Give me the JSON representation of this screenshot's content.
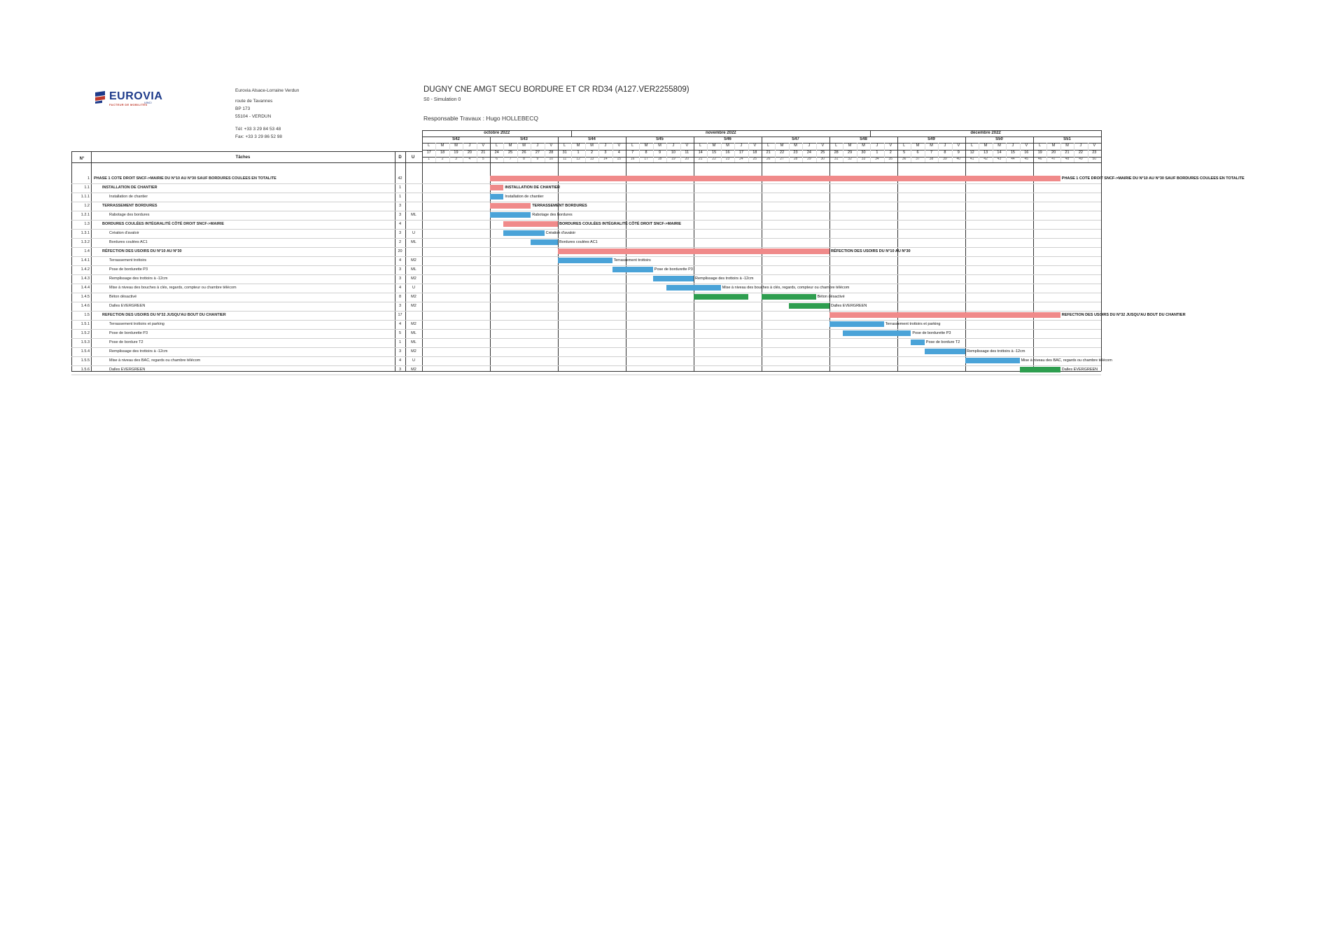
{
  "company": {
    "logo_text": "EUROVIA",
    "logo_tagline": "FACTEUR DE MOBILITÉS",
    "group": "VINCI",
    "name": "Eurovia Alsace-Lorraine Verdun",
    "street": "route de Tavannes",
    "bp": "BP 173",
    "city": "55104 - VERDUN",
    "tel": "Tél: +33 3 29 84 53 48",
    "fax": "Fax: +33 3 29 86 52 98"
  },
  "project": {
    "title": "DUGNY CNE AMGT SECU BORDURE ET CR RD34 (A127.VER2255809)",
    "simulation": "S0 - Simulation 0",
    "manager": "Responsable Travaux : Hugo HOLLEBECQ"
  },
  "table_headers": {
    "num": "N°",
    "task": "Tâches",
    "d": "D",
    "u": "U"
  },
  "months": [
    {
      "label": "octobre 2022",
      "start": 0,
      "span": 11
    },
    {
      "label": "novembre 2022",
      "start": 11,
      "span": 22
    },
    {
      "label": "décembre 2022",
      "start": 33,
      "span": 17
    }
  ],
  "weeks": [
    {
      "label": "S42",
      "start": 0,
      "span": 5
    },
    {
      "label": "S43",
      "start": 5,
      "span": 5
    },
    {
      "label": "S44",
      "start": 10,
      "span": 5
    },
    {
      "label": "S45",
      "start": 15,
      "span": 5
    },
    {
      "label": "S46",
      "start": 20,
      "span": 5
    },
    {
      "label": "S47",
      "start": 25,
      "span": 5
    },
    {
      "label": "S48",
      "start": 30,
      "span": 5
    },
    {
      "label": "S49",
      "start": 35,
      "span": 5
    },
    {
      "label": "S50",
      "start": 40,
      "span": 5
    },
    {
      "label": "S51",
      "start": 45,
      "span": 5
    }
  ],
  "day_letters": [
    "L",
    "M",
    "M",
    "J",
    "V",
    "L",
    "M",
    "M",
    "J",
    "V",
    "L",
    "M",
    "M",
    "J",
    "V",
    "L",
    "M",
    "M",
    "J",
    "V",
    "L",
    "M",
    "M",
    "J",
    "V",
    "L",
    "M",
    "M",
    "J",
    "V",
    "L",
    "M",
    "M",
    "J",
    "V",
    "L",
    "M",
    "M",
    "J",
    "V",
    "L",
    "M",
    "M",
    "J",
    "V",
    "L",
    "M",
    "M",
    "J",
    "V"
  ],
  "day_numbers": [
    "17",
    "18",
    "19",
    "20",
    "21",
    "24",
    "25",
    "26",
    "27",
    "28",
    "31",
    "1",
    "2",
    "3",
    "4",
    "7",
    "8",
    "9",
    "10",
    "11",
    "14",
    "15",
    "16",
    "17",
    "18",
    "21",
    "22",
    "23",
    "24",
    "25",
    "28",
    "29",
    "30",
    "1",
    "2",
    "5",
    "6",
    "7",
    "8",
    "9",
    "12",
    "13",
    "14",
    "15",
    "16",
    "19",
    "20",
    "21",
    "22",
    "23"
  ],
  "day_index": [
    "1",
    "2",
    "3",
    "4",
    "5",
    "6",
    "7",
    "8",
    "9",
    "10",
    "11",
    "12",
    "13",
    "14",
    "15",
    "16",
    "17",
    "18",
    "19",
    "20",
    "21",
    "22",
    "23",
    "24",
    "25",
    "26",
    "27",
    "28",
    "29",
    "30",
    "31",
    "32",
    "33",
    "34",
    "35",
    "36",
    "37",
    "38",
    "39",
    "40",
    "41",
    "42",
    "43",
    "44",
    "45",
    "46",
    "47",
    "48",
    "49",
    "50"
  ],
  "tasks": [
    {
      "num": "1",
      "name": "PHASE 1 COTE DROIT SNCF->MAIRIE DU N°10 AU N°30 SAUF BORDURES COULEES EN TOTALITE",
      "d": "42",
      "u": "",
      "bold": true,
      "indent": 0,
      "bar_start": 5,
      "bar_len": 42,
      "color": "#f08a8a",
      "bar_label": "PHASE 1 COTE DROIT SNCF->MAIRIE DU N°10 AU N°30 SAUF BORDURES COULEES EN TOTALITE"
    },
    {
      "num": "1.1",
      "name": "INSTALLATION DE CHANTIER",
      "d": "1",
      "u": "",
      "bold": true,
      "indent": 1,
      "bar_start": 5,
      "bar_len": 1,
      "color": "#f08a8a",
      "bar_label": "INSTALLATION DE CHANTIER"
    },
    {
      "num": "1.1.1",
      "name": "Installation de chantier",
      "d": "1",
      "u": "",
      "bold": false,
      "indent": 2,
      "bar_start": 5,
      "bar_len": 1,
      "color": "#4aa3d8",
      "bar_label": "Installation de chantier"
    },
    {
      "num": "1.2",
      "name": "TERRASSEMENT BORDURES",
      "d": "3",
      "u": "",
      "bold": true,
      "indent": 1,
      "bar_start": 5,
      "bar_len": 3,
      "color": "#f08a8a",
      "bar_label": "TERRASSEMENT BORDURES"
    },
    {
      "num": "1.2.1",
      "name": "Rabotage des bordures",
      "d": "3",
      "u": "ML",
      "bold": false,
      "indent": 2,
      "bar_start": 5,
      "bar_len": 3,
      "color": "#4aa3d8",
      "bar_label": "Rabotage des bordures"
    },
    {
      "num": "1.3",
      "name": "BORDURES COULÉES INTÉGRALITÉ CÔTÉ DROIT SNCF->MAIRIE",
      "d": "4",
      "u": "",
      "bold": true,
      "indent": 1,
      "bar_start": 6,
      "bar_len": 4,
      "color": "#f08a8a",
      "bar_label": "BORDURES COULÉES INTÉGRALITÉ CÔTÉ DROIT SNCF->MAIRIE"
    },
    {
      "num": "1.3.1",
      "name": "Création d'avaloir",
      "d": "3",
      "u": "U",
      "bold": false,
      "indent": 2,
      "bar_start": 6,
      "bar_len": 3,
      "color": "#4aa3d8",
      "bar_label": "Création d'avaloir"
    },
    {
      "num": "1.3.2",
      "name": "Bordures coulées AC1",
      "d": "2",
      "u": "ML",
      "bold": false,
      "indent": 2,
      "bar_start": 8,
      "bar_len": 2,
      "color": "#4aa3d8",
      "bar_label": "Bordures coulées AC1"
    },
    {
      "num": "1.4",
      "name": "RÉFECTION DES USOIRS DU N°10 AU N°30",
      "d": "20",
      "u": "",
      "bold": true,
      "indent": 1,
      "bar_start": 10,
      "bar_len": 20,
      "color": "#f08a8a",
      "bar_label": "RÉFECTION DES USOIRS DU N°10 AU N°30"
    },
    {
      "num": "1.4.1",
      "name": "Terrassement trottoirs",
      "d": "4",
      "u": "M2",
      "bold": false,
      "indent": 2,
      "bar_start": 10,
      "bar_len": 4,
      "color": "#4aa3d8",
      "bar_label": "Terrassement trottoirs"
    },
    {
      "num": "1.4.2",
      "name": "Pose de bordurette P3",
      "d": "3",
      "u": "ML",
      "bold": false,
      "indent": 2,
      "bar_start": 14,
      "bar_len": 3,
      "color": "#4aa3d8",
      "bar_label": "Pose de bordurette P3"
    },
    {
      "num": "1.4.3",
      "name": "Remplissage des trottoirs à -12cm",
      "d": "3",
      "u": "M2",
      "bold": false,
      "indent": 2,
      "bar_start": 17,
      "bar_len": 3,
      "color": "#4aa3d8",
      "bar_label": "Remplissage des trottoirs à -12cm"
    },
    {
      "num": "1.4.4",
      "name": "Mise à niveau des bouches à clés, regards, compteur ou chambre télécom",
      "d": "4",
      "u": "U",
      "bold": false,
      "indent": 2,
      "bar_start": 18,
      "bar_len": 4,
      "color": "#4aa3d8",
      "bar_label": "Mise à niveau des bouches à clés, regards, compteur ou chambre télécom"
    },
    {
      "num": "1.4.5",
      "name": "Béton désactivé",
      "d": "8",
      "u": "M2",
      "bold": false,
      "indent": 2,
      "bar_start": 20,
      "bar_len": 4,
      "bar2_start": 25,
      "bar2_len": 4,
      "color": "#2e9e4f",
      "bar_label": "Béton désactivé"
    },
    {
      "num": "1.4.6",
      "name": "Dalles EVERGREEN",
      "d": "3",
      "u": "M2",
      "bold": false,
      "indent": 2,
      "bar_start": 27,
      "bar_len": 3,
      "color": "#2e9e4f",
      "bar_label": "Dalles EVERGREEN"
    },
    {
      "num": "1.5",
      "name": "REFECTION DES USOIRS DU N°32 JUSQU'AU BOUT DU CHANTIER",
      "d": "17",
      "u": "",
      "bold": true,
      "indent": 1,
      "bar_start": 30,
      "bar_len": 17,
      "color": "#f08a8a",
      "bar_label": "REFECTION DES USOIRS DU N°32 JUSQU'AU BOUT DU CHANTIER"
    },
    {
      "num": "1.5.1",
      "name": "Terrassement trottoirs et parking",
      "d": "4",
      "u": "M2",
      "bold": false,
      "indent": 2,
      "bar_start": 30,
      "bar_len": 4,
      "color": "#4aa3d8",
      "bar_label": "Terrassement trottoirs et parking"
    },
    {
      "num": "1.5.2",
      "name": "Pose de bordurette P3",
      "d": "5",
      "u": "ML",
      "bold": false,
      "indent": 2,
      "bar_start": 31,
      "bar_len": 5,
      "color": "#4aa3d8",
      "bar_label": "Pose de bordurette P3"
    },
    {
      "num": "1.5.3",
      "name": "Pose de bordure T2",
      "d": "1",
      "u": "ML",
      "bold": false,
      "indent": 2,
      "bar_start": 36,
      "bar_len": 1,
      "color": "#4aa3d8",
      "bar_label": "Pose de bordure T2"
    },
    {
      "num": "1.5.4",
      "name": "Remplissage des trottoirs à -12cm",
      "d": "3",
      "u": "M2",
      "bold": false,
      "indent": 2,
      "bar_start": 37,
      "bar_len": 3,
      "color": "#4aa3d8",
      "bar_label": "Remplissage des trottoirs à -12cm"
    },
    {
      "num": "1.5.5",
      "name": "Mise à niveau des BAC, regards ou chambre télécom",
      "d": "4",
      "u": "U",
      "bold": false,
      "indent": 2,
      "bar_start": 40,
      "bar_len": 4,
      "color": "#4aa3d8",
      "bar_label": "Mise à niveau des BAC, regards ou chambre télécom"
    },
    {
      "num": "1.5.6",
      "name": "Dalles EVERGREEN",
      "d": "3",
      "u": "M2",
      "bold": false,
      "indent": 2,
      "bar_start": 44,
      "bar_len": 3,
      "color": "#2e9e4f",
      "bar_label": "Dalles EVERGREEN"
    }
  ]
}
